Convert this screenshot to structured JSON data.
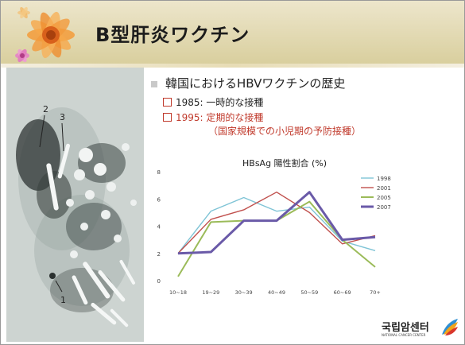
{
  "slide": {
    "title": "B型肝炎ワクチン",
    "bullet": "韓国におけるHBVワクチンの歴史",
    "sub1": "1985: 一時的な接種",
    "sub2": "1995: 定期的な接種",
    "sub3": "（国家規模での小児期の予防接種）"
  },
  "photo": {
    "labels": [
      "2",
      "3",
      "1"
    ]
  },
  "logo": {
    "text": "국립암센터",
    "sub": "NATIONAL CANCER CENTER"
  },
  "chart_data": {
    "type": "line",
    "title": "HBsAg 陽性割合 (%)",
    "categories": [
      "10~18",
      "19~29",
      "30~39",
      "40~49",
      "50~59",
      "60~69",
      "70+"
    ],
    "ylim": [
      0,
      8
    ],
    "yticks": [
      "0",
      "2",
      "4",
      "6",
      "8"
    ],
    "legend_position": "top-right",
    "series": [
      {
        "name": "1998",
        "color": "#7fc4d6",
        "values": [
          2.0,
          5.1,
          6.1,
          5.1,
          5.4,
          2.9,
          2.2
        ]
      },
      {
        "name": "2001",
        "color": "#c0504d",
        "values": [
          2.0,
          4.5,
          5.2,
          6.5,
          5.0,
          2.7,
          3.3
        ]
      },
      {
        "name": "2005",
        "color": "#9bbb59",
        "values": [
          0.3,
          4.3,
          4.4,
          4.4,
          5.8,
          3.0,
          1.0
        ]
      },
      {
        "name": "2007",
        "color": "#6a5aa8",
        "values": [
          2.0,
          2.1,
          4.4,
          4.4,
          6.5,
          3.0,
          3.2
        ]
      }
    ]
  }
}
